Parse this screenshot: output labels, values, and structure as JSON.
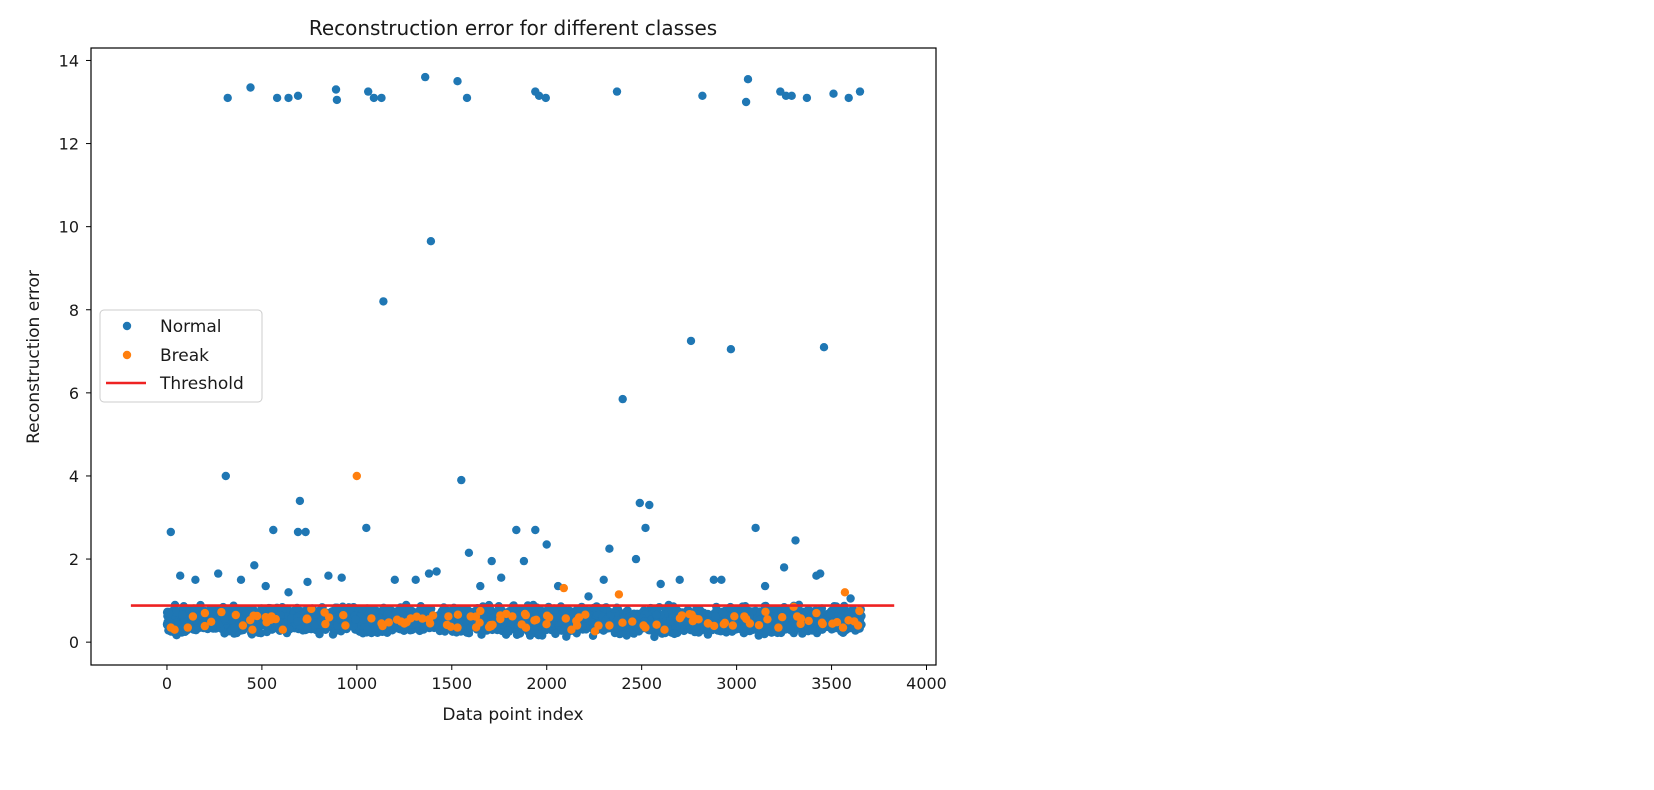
{
  "chart_data": {
    "type": "scatter",
    "title": "Reconstruction error for different classes",
    "xlabel": "Data point index",
    "ylabel": "Reconstruction error",
    "xlim": [
      -400,
      4050
    ],
    "ylim": [
      -0.55,
      14.3
    ],
    "xticks": [
      0,
      500,
      1000,
      1500,
      2000,
      2500,
      3000,
      3500,
      4000
    ],
    "yticks": [
      0,
      2,
      4,
      6,
      8,
      10,
      12,
      14
    ],
    "grid": false,
    "legend_position": "center-left",
    "colors": {
      "normal": "#1f77b4",
      "break": "#ff7f0e",
      "threshold": "#ee2222"
    },
    "normal_band": {
      "x_range": [
        0,
        3660
      ],
      "y_range": [
        0.1,
        0.95
      ],
      "approx_count": 3600
    },
    "break_band": {
      "x_range": [
        0,
        3660
      ],
      "y_range": [
        0.2,
        0.9
      ],
      "approx_count": 90
    },
    "series": [
      {
        "name": "Normal",
        "kind": "points",
        "x": [
          320,
          440,
          580,
          640,
          690,
          890,
          895,
          1060,
          1090,
          1130,
          1360,
          1530,
          1580,
          1940,
          1960,
          1995,
          2370,
          2820,
          3050,
          3060,
          3230,
          3260,
          3290,
          3370,
          3510,
          3590,
          3650,
          1390,
          1140,
          2760,
          2970,
          3460,
          2400,
          310,
          1550,
          700,
          2490,
          2540,
          560,
          690,
          730,
          1050,
          1840,
          1940,
          2520,
          3100,
          3310,
          1590,
          2000,
          2330,
          2470,
          20,
          70,
          150,
          270,
          390,
          460,
          520,
          640,
          740,
          850,
          920,
          1200,
          1310,
          1380,
          1420,
          1650,
          1710,
          1760,
          1880,
          2060,
          2220,
          2300,
          2600,
          2700,
          2880,
          2920,
          3150,
          3250,
          3420,
          3440,
          3600
        ],
        "y": [
          13.1,
          13.35,
          13.1,
          13.1,
          13.15,
          13.3,
          13.05,
          13.25,
          13.1,
          13.1,
          13.6,
          13.5,
          13.1,
          13.25,
          13.15,
          13.1,
          13.25,
          13.15,
          13.0,
          13.55,
          13.25,
          13.15,
          13.15,
          13.1,
          13.2,
          13.1,
          13.25,
          9.65,
          8.2,
          7.25,
          7.05,
          7.1,
          5.85,
          4.0,
          3.9,
          3.4,
          3.35,
          3.3,
          2.7,
          2.65,
          2.65,
          2.75,
          2.7,
          2.7,
          2.75,
          2.75,
          2.45,
          2.15,
          2.35,
          2.25,
          2.0,
          2.65,
          1.6,
          1.5,
          1.65,
          1.5,
          1.85,
          1.35,
          1.2,
          1.45,
          1.6,
          1.55,
          1.5,
          1.5,
          1.65,
          1.7,
          1.35,
          1.95,
          1.55,
          1.95,
          1.35,
          1.1,
          1.5,
          1.4,
          1.5,
          1.5,
          1.5,
          1.35,
          1.8,
          1.6,
          1.65,
          1.05
        ]
      },
      {
        "name": "Break",
        "kind": "points",
        "x": [
          1000,
          2090,
          2380,
          3570,
          20,
          40,
          110,
          200,
          400,
          450,
          520,
          610,
          760,
          940,
          1130,
          1250,
          1380,
          1530,
          1650,
          1890,
          2130,
          2160,
          2330,
          2510,
          2620,
          2800,
          2850,
          2980,
          3070,
          3220,
          3240,
          3300,
          3420,
          3560,
          3620,
          3640
        ],
        "y": [
          4.0,
          1.3,
          1.15,
          1.2,
          0.35,
          0.3,
          0.35,
          0.7,
          0.4,
          0.3,
          0.6,
          0.3,
          0.8,
          0.4,
          0.45,
          0.45,
          0.55,
          0.35,
          0.75,
          0.65,
          0.3,
          0.4,
          0.4,
          0.4,
          0.3,
          0.55,
          0.45,
          0.4,
          0.45,
          0.35,
          0.6,
          0.85,
          0.7,
          0.35,
          0.5,
          0.4
        ]
      },
      {
        "name": "Threshold",
        "kind": "line",
        "x": [
          -190,
          3830
        ],
        "y": [
          0.88,
          0.88
        ]
      }
    ]
  }
}
